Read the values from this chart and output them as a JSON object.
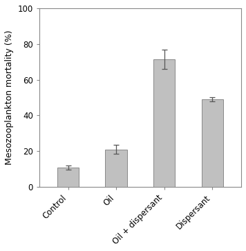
{
  "categories": [
    "Control",
    "Oil",
    "Oil + dispersant",
    "Dispersant"
  ],
  "values": [
    11.0,
    21.0,
    71.5,
    49.0
  ],
  "errors": [
    1.2,
    2.5,
    5.5,
    1.2
  ],
  "bar_color": "#c0c0c0",
  "bar_edgecolor": "#888888",
  "ylabel": "Mesozooplankton mortality (%)",
  "ylim": [
    0,
    100
  ],
  "yticks": [
    0,
    20,
    40,
    60,
    80,
    100
  ],
  "bar_width": 0.45,
  "background_color": "#ffffff",
  "tick_label_fontsize": 8.5,
  "ylabel_fontsize": 9.0,
  "error_capsize": 3,
  "error_linewidth": 0.9,
  "error_color": "#555555",
  "spine_color": "#888888",
  "spine_linewidth": 0.8
}
